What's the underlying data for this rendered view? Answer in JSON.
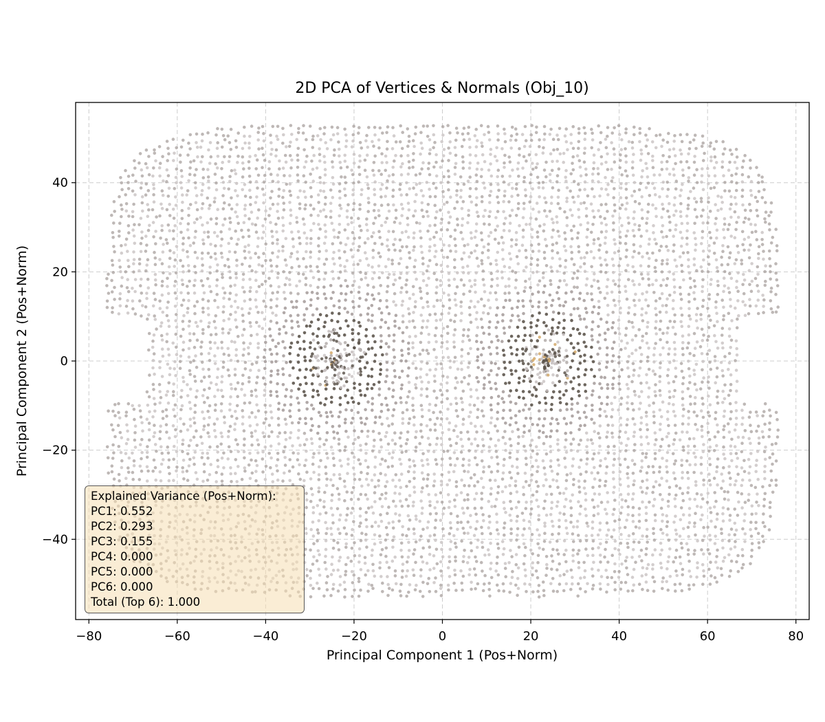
{
  "chart_data": {
    "type": "scatter",
    "title": "2D PCA of Vertices & Normals (Obj_10)",
    "xlabel": "Principal Component 1 (Pos+Norm)",
    "ylabel": "Principal Component 2 (Pos+Norm)",
    "xlim": [
      -83,
      83
    ],
    "ylim": [
      -58,
      58
    ],
    "xticks": [
      -80,
      -60,
      -40,
      -20,
      0,
      20,
      40,
      60,
      80
    ],
    "yticks": [
      -40,
      -20,
      0,
      20,
      40
    ],
    "xtick_labels": [
      "−80",
      "−60",
      "−40",
      "−20",
      "0",
      "20",
      "40",
      "60",
      "80"
    ],
    "ytick_labels": [
      "−40",
      "−20",
      "0",
      "20",
      "40"
    ],
    "grid": true,
    "point_cloud": {
      "x_range": [
        -76,
        76
      ],
      "y_range": [
        -53,
        53
      ],
      "dense_clusters": [
        {
          "center": [
            -24,
            0
          ]
        },
        {
          "center": [
            24,
            0
          ]
        }
      ],
      "colors": {
        "light": "#c4bdbd",
        "mid": "#a8a09e",
        "dark": "#5e564e",
        "accent": "#d4a96a"
      }
    },
    "annotation": {
      "placement": "lower-left",
      "lines": [
        "Explained Variance (Pos+Norm):",
        "PC1: 0.552",
        "PC2: 0.293",
        "PC3: 0.155",
        "PC4: 0.000",
        "PC5: 0.000",
        "PC6: 0.000",
        "Total (Top 6): 1.000"
      ]
    }
  }
}
